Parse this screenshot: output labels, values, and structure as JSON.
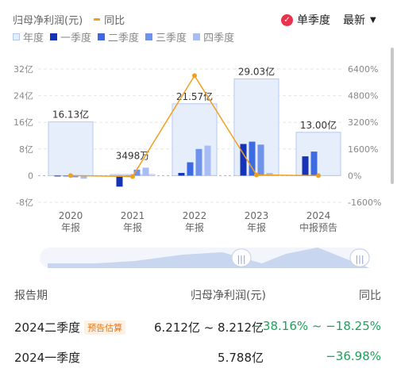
{
  "legend": {
    "title": "归母净利润(元)",
    "yoy_label": "同比",
    "annual_label": "年度",
    "q1_label": "一季度",
    "q2_label": "二季度",
    "q3_label": "三季度",
    "q4_label": "四季度"
  },
  "controls": {
    "single_quarter_label": "单季度",
    "latest_label": "最新"
  },
  "colors": {
    "annual_fill": "#e6eefc",
    "annual_border": "#b4c9f2",
    "q1": "#1433b8",
    "q2": "#3d6ae0",
    "q3": "#6f92ea",
    "q4": "#a7bdf4",
    "yoy_line": "#f0a020",
    "axis_text": "#888888",
    "positive_yoy": "#1aa35a"
  },
  "chart_data": {
    "type": "bar",
    "categories": [
      "2020\n年报",
      "2021\n年报",
      "2022\n年报",
      "2023\n年报",
      "2024\n中报预告"
    ],
    "annual_values_yi": [
      16.13,
      0.3498,
      21.57,
      29.03,
      13.0
    ],
    "annual_labels": [
      "16.13亿",
      "3498万",
      "21.57亿",
      "29.03亿",
      "13.00亿"
    ],
    "quarterly_series": [
      {
        "name": "一季度",
        "values": [
          0,
          -3.3,
          0.8,
          9.5,
          5.788
        ]
      },
      {
        "name": "二季度",
        "values": [
          -0.2,
          -0.4,
          4.0,
          10.2,
          7.212
        ]
      },
      {
        "name": "三季度",
        "values": [
          -0.5,
          1.8,
          8.0,
          9.3,
          null
        ]
      },
      {
        "name": "四季度",
        "values": [
          -0.9,
          2.4,
          9.0,
          0.8,
          null
        ]
      }
    ],
    "yoy_series": {
      "name": "同比",
      "values": [
        0,
        -50,
        6000,
        40,
        0
      ]
    },
    "left_axis": {
      "ticks": [
        "32亿",
        "24亿",
        "16亿",
        "8亿",
        "0",
        "-8亿"
      ],
      "ylim": [
        -8,
        32
      ]
    },
    "right_axis": {
      "ticks": [
        "6400%",
        "4800%",
        "3200%",
        "1600%",
        "0%",
        "-1600%"
      ],
      "ylim": [
        -1600,
        6400
      ]
    },
    "title": ""
  },
  "table": {
    "header_period": "报告期",
    "header_profit": "归母净利润(元)",
    "header_yoy": "同比",
    "rows": [
      {
        "period": "2024二季度",
        "badge": "预告估算",
        "profit": "6.212亿 ~ 8.212亿",
        "yoy": "−38.16% ~ −18.25%"
      },
      {
        "period": "2024一季度",
        "badge": "",
        "profit": "5.788亿",
        "yoy": "−36.98%"
      }
    ]
  }
}
